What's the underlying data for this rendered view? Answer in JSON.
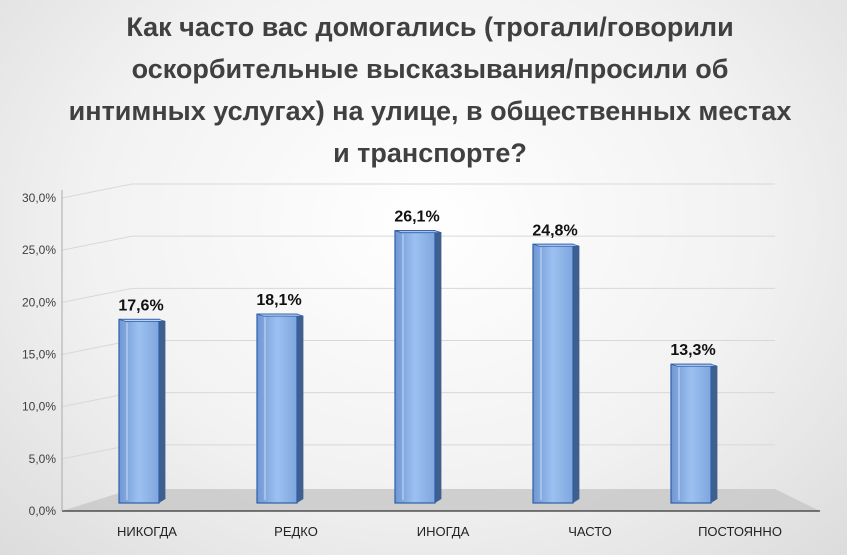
{
  "chart_data": {
    "type": "bar",
    "title": "Как часто вас домогались (трогали/говорили оскорбительные высказывания/просили об интимных услугах) на улице, в общественных местах и транспорте?",
    "categories": [
      "НИКОГДА",
      "РЕДКО",
      "ИНОГДА",
      "ЧАСТО",
      "ПОСТОЯННО"
    ],
    "values": [
      17.6,
      18.1,
      26.1,
      24.8,
      13.3
    ],
    "data_labels": [
      "17,6%",
      "18,1%",
      "26,1%",
      "24,8%",
      "13,3%"
    ],
    "y_ticks": [
      "0,0%",
      "5,0%",
      "10,0%",
      "15,0%",
      "20,0%",
      "25,0%",
      "30,0%"
    ],
    "ylim": [
      0,
      30
    ],
    "grid": true,
    "style": "3d-column",
    "colors": {
      "bar_front": "#8fb3e6",
      "bar_side": "#3f5f8f",
      "bar_stroke": "#2e5fa8",
      "floor": "#c9c9c9",
      "grid": "#d8d8d8"
    }
  }
}
